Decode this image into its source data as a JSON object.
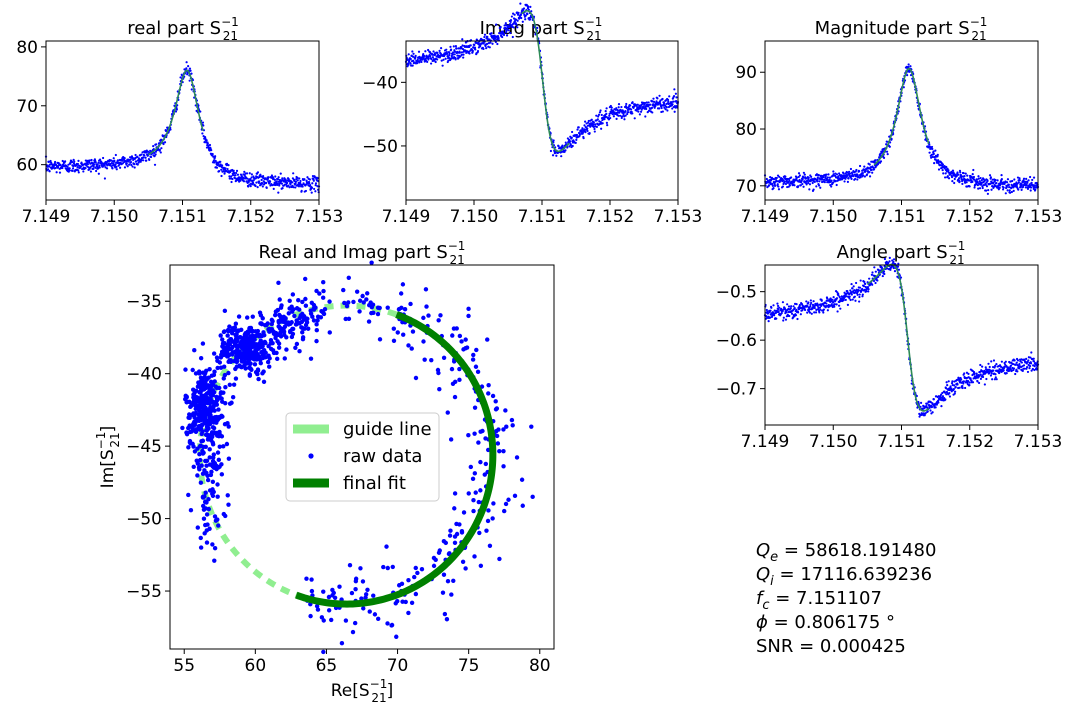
{
  "chart_data": [
    {
      "id": "real",
      "type": "scatter",
      "title": "real part S",
      "title_sup": "−1",
      "title_sub": "21",
      "xlim": [
        7.149,
        7.153
      ],
      "ylim": [
        54,
        81
      ],
      "xticks": [
        7.149,
        7.15,
        7.151,
        7.152,
        7.153
      ],
      "yticks": [
        60,
        70,
        80
      ],
      "x_decimals": 3,
      "y_decimals": 0,
      "model": "peak",
      "params": {
        "f0": 7.15107,
        "base_left": 59.5,
        "base_right": 56.5,
        "amp": 18.0,
        "width": 0.00022,
        "noise": 0.6
      },
      "series": [
        {
          "role": "raw",
          "color": "#0000ff"
        },
        {
          "role": "fit",
          "color": "#2e8b57",
          "x_range": [
            7.1505,
            7.1513
          ]
        }
      ]
    },
    {
      "id": "imag",
      "type": "scatter",
      "title": "Imag part S",
      "title_sup": "−1",
      "title_sub": "21",
      "xlim": [
        7.149,
        7.153
      ],
      "ylim": [
        -58.5,
        -33.5
      ],
      "xticks": [
        7.149,
        7.15,
        7.151,
        7.152,
        7.153
      ],
      "yticks": [
        -50,
        -40
      ],
      "x_decimals": 3,
      "y_decimals": 0,
      "model": "dispersion",
      "params": {
        "f0": 7.15101,
        "base_left": -38.8,
        "base_right": -40.8,
        "amp": 10.5,
        "width": 0.00022,
        "noise": 0.6
      },
      "series": [
        {
          "role": "raw",
          "color": "#0000ff"
        },
        {
          "role": "fit",
          "color": "#2e8b57",
          "x_range": [
            7.1507,
            7.1514
          ]
        }
      ]
    },
    {
      "id": "mag",
      "type": "scatter",
      "title": "Magnitude part S",
      "title_sup": "−1",
      "title_sub": "21",
      "xlim": [
        7.149,
        7.153
      ],
      "ylim": [
        67.5,
        95.5
      ],
      "xticks": [
        7.149,
        7.15,
        7.151,
        7.152,
        7.153
      ],
      "yticks": [
        70,
        80,
        90
      ],
      "x_decimals": 3,
      "y_decimals": 0,
      "model": "peak",
      "params": {
        "f0": 7.15111,
        "base_left": 70.5,
        "base_right": 69.8,
        "amp": 20.5,
        "width": 0.00022,
        "noise": 0.6
      },
      "series": [
        {
          "role": "raw",
          "color": "#0000ff"
        },
        {
          "role": "fit",
          "color": "#2e8b57",
          "x_range": [
            7.1506,
            7.1514
          ]
        }
      ]
    },
    {
      "id": "angle",
      "type": "scatter",
      "title": "Angle part S",
      "title_sup": "−1",
      "title_sub": "21",
      "xlim": [
        7.149,
        7.153
      ],
      "ylim": [
        -0.775,
        -0.445
      ],
      "xticks": [
        7.149,
        7.15,
        7.151,
        7.152,
        7.153
      ],
      "yticks": [
        -0.7,
        -0.6,
        -0.5
      ],
      "x_decimals": 3,
      "y_decimals": 1,
      "model": "dispersion",
      "params": {
        "f0": 7.15109,
        "base_left": -0.575,
        "base_right": -0.615,
        "amp": 0.14,
        "width": 0.00022,
        "noise": 0.008
      },
      "series": [
        {
          "role": "raw",
          "color": "#0000ff"
        },
        {
          "role": "fit",
          "color": "#2e8b57",
          "x_range": [
            7.1505,
            7.1514
          ]
        }
      ]
    },
    {
      "id": "circle",
      "type": "scatter",
      "title": "Real and Imag part S",
      "title_sup": "−1",
      "title_sub": "21",
      "xlabel": "Re[S",
      "ylabel": "Im[S",
      "xlim": [
        54,
        81
      ],
      "ylim": [
        -59,
        -32.5
      ],
      "xticks": [
        55,
        60,
        65,
        70,
        75,
        80
      ],
      "yticks": [
        -55,
        -50,
        -45,
        -40,
        -35
      ],
      "x_decimals": 0,
      "y_decimals": 0,
      "circle": {
        "cx": 66.4,
        "cy": -45.6,
        "r": 10.3
      },
      "series": [
        {
          "name": "guide line",
          "role": "guide",
          "color": "#90ee90",
          "angle_range_deg": [
            70,
            250
          ]
        },
        {
          "name": "raw data",
          "role": "raw",
          "color": "#0000ff"
        },
        {
          "name": "final fit",
          "role": "fit",
          "color": "#008000",
          "angle_range_deg": [
            -110,
            70
          ]
        }
      ],
      "legend_position": "center"
    }
  ],
  "results": [
    {
      "sym": "Q",
      "sub": "e",
      "text": " = 58618.191480"
    },
    {
      "sym": "Q",
      "sub": "i",
      "text": " = 17116.639236"
    },
    {
      "sym": "f",
      "sub": "c",
      "text": " = 7.151107"
    },
    {
      "sym": "ϕ",
      "sub": "",
      "text": " = 0.806175 °"
    },
    {
      "sym": "",
      "sub": "",
      "text": "SNR = 0.000425"
    }
  ]
}
